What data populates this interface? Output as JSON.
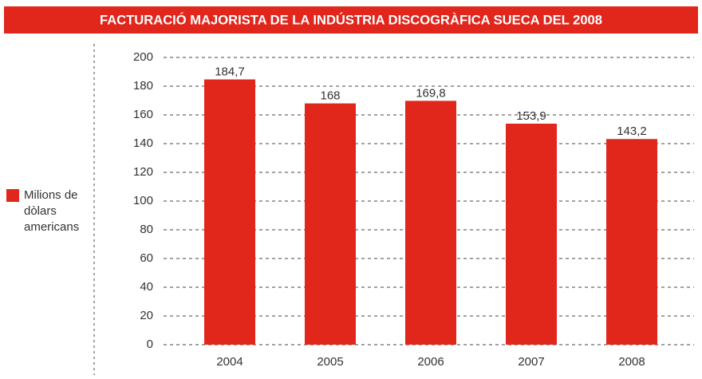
{
  "chart_data": {
    "type": "bar",
    "title": "FACTURACIÓ MAJORISTA DE LA INDÚSTRIA DISCOGRÀFICA SUECA DEL 2008",
    "categories": [
      "2004",
      "2005",
      "2006",
      "2007",
      "2008"
    ],
    "series": [
      {
        "name": "Milions de dòlars americans",
        "color": "#e1261c",
        "values": [
          184.7,
          168,
          169.8,
          153.9,
          143.2
        ],
        "value_labels": [
          "184,7",
          "168",
          "169,8",
          "153,9",
          "143,2"
        ]
      }
    ],
    "ylim": [
      0,
      200
    ],
    "yticks": [
      0,
      20,
      40,
      60,
      80,
      100,
      120,
      140,
      160,
      180,
      200
    ],
    "grid": true,
    "legend": "left"
  }
}
